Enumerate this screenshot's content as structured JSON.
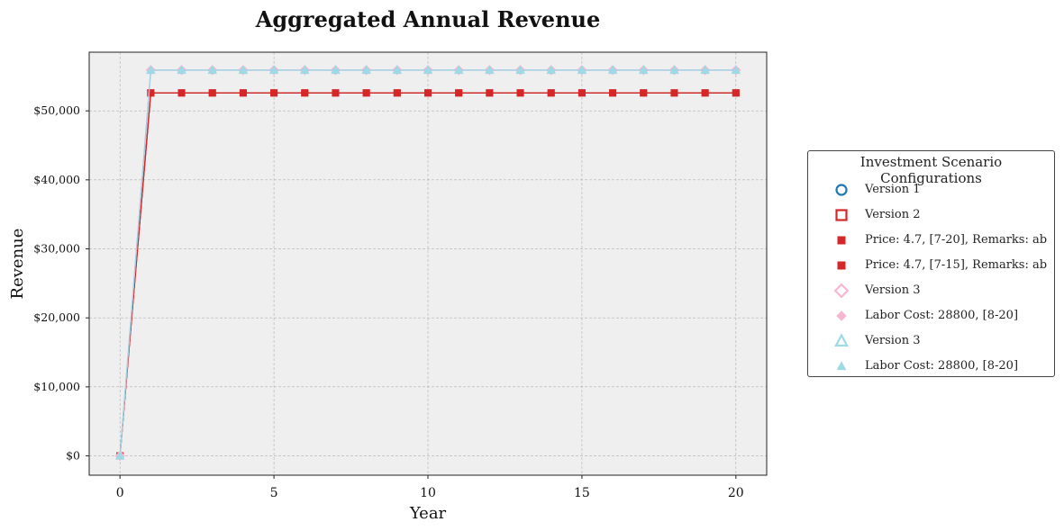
{
  "chart_data": {
    "type": "line",
    "title": "Aggregated Annual Revenue",
    "xlabel": "Year",
    "ylabel": "Revenue",
    "xlim": [
      -1,
      21
    ],
    "ylim": [
      -2800,
      58500
    ],
    "xticks": [
      0,
      5,
      10,
      15,
      20
    ],
    "xtick_labels": [
      "0",
      "5",
      "10",
      "15",
      "20"
    ],
    "yticks": [
      0,
      10000,
      20000,
      30000,
      40000,
      50000
    ],
    "ytick_labels": [
      "$0",
      "$10,000",
      "$20,000",
      "$30,000",
      "$40,000",
      "$50,000"
    ],
    "grid": true,
    "legend_position": "outside-right",
    "x": [
      0,
      1,
      2,
      3,
      4,
      5,
      6,
      7,
      8,
      9,
      10,
      11,
      12,
      13,
      14,
      15,
      16,
      17,
      18,
      19,
      20
    ],
    "series": [
      {
        "name": "Price: 4.7, [7-20], Remarks: ab",
        "color": "#d62728",
        "marker": "square",
        "values": [
          0,
          52600,
          52600,
          52600,
          52600,
          52600,
          52600,
          52600,
          52600,
          52600,
          52600,
          52600,
          52600,
          52600,
          52600,
          52600,
          52600,
          52600,
          52600,
          52600,
          52600
        ]
      },
      {
        "name": "Price: 4.7, [7-15], Remarks: ab",
        "color": "#d62728",
        "marker": "square",
        "values": [
          0,
          52600,
          52600,
          52600,
          52600,
          52600,
          52600,
          52600,
          52600,
          52600,
          52600,
          52600,
          52600,
          52600,
          52600,
          52600,
          52600,
          52600,
          52600,
          52600,
          52600
        ]
      },
      {
        "name": "Labor Cost: 28800, [8-20]",
        "color": "#f7b6d2",
        "marker": "diamond",
        "values": [
          0,
          55900,
          55900,
          55900,
          55900,
          55900,
          55900,
          55900,
          55900,
          55900,
          55900,
          55900,
          55900,
          55900,
          55900,
          55900,
          55900,
          55900,
          55900,
          55900,
          55900
        ]
      },
      {
        "name": "Labor Cost: 28800, [8-20]",
        "color": "#9edae5",
        "marker": "triangle",
        "values": [
          0,
          55900,
          55900,
          55900,
          55900,
          55900,
          55900,
          55900,
          55900,
          55900,
          55900,
          55900,
          55900,
          55900,
          55900,
          55900,
          55900,
          55900,
          55900,
          55900,
          55900
        ]
      }
    ],
    "legend": {
      "title": "Investment Scenario Configurations",
      "entries": [
        {
          "label": "Version 1",
          "marker": "circle-open",
          "color": "#1f77b4"
        },
        {
          "label": "Version 2",
          "marker": "square-open",
          "color": "#d62728"
        },
        {
          "label": "Price: 4.7, [7-20], Remarks: ab",
          "marker": "square",
          "color": "#d62728"
        },
        {
          "label": "Price: 4.7, [7-15], Remarks: ab",
          "marker": "square",
          "color": "#d62728"
        },
        {
          "label": "Version 3",
          "marker": "diamond-open",
          "color": "#f7b6d2"
        },
        {
          "label": "Labor Cost: 28800, [8-20]",
          "marker": "diamond",
          "color": "#f7b6d2"
        },
        {
          "label": "Version 3",
          "marker": "triangle-open",
          "color": "#9edae5"
        },
        {
          "label": "Labor Cost: 28800, [8-20]",
          "marker": "triangle",
          "color": "#9edae5"
        }
      ]
    }
  },
  "colors": {
    "plot_background": "#efefef",
    "grid": "#b0b0b0",
    "line_blue": "#a6cee3"
  }
}
